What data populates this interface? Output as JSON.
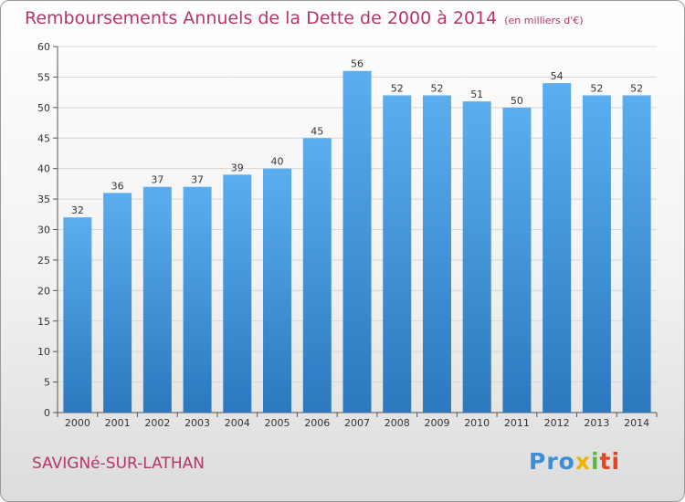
{
  "header": {
    "title": "Remboursements Annuels de la Dette de 2000 à 2014",
    "unit": "(en milliers d'€)"
  },
  "commune": "SAVIGNé-SUR-LATHAN",
  "logo": {
    "text": "Proxiti"
  },
  "colors": {
    "bar_top": "#5aaef0",
    "bar_bottom": "#2b78bf",
    "title": "#b8336a"
  },
  "chart_data": {
    "type": "bar",
    "title": "Remboursements Annuels de la Dette de 2000 à 2014",
    "xlabel": "",
    "ylabel": "",
    "categories": [
      "2000",
      "2001",
      "2002",
      "2003",
      "2004",
      "2005",
      "2006",
      "2007",
      "2008",
      "2009",
      "2010",
      "2011",
      "2012",
      "2013",
      "2014"
    ],
    "values": [
      32,
      36,
      37,
      37,
      39,
      40,
      45,
      56,
      52,
      52,
      51,
      50,
      54,
      52,
      52
    ],
    "ylim": [
      0,
      60
    ],
    "yticks": [
      0,
      5,
      10,
      15,
      20,
      25,
      30,
      35,
      40,
      45,
      50,
      55,
      60
    ],
    "grid": true,
    "data_labels": true
  }
}
